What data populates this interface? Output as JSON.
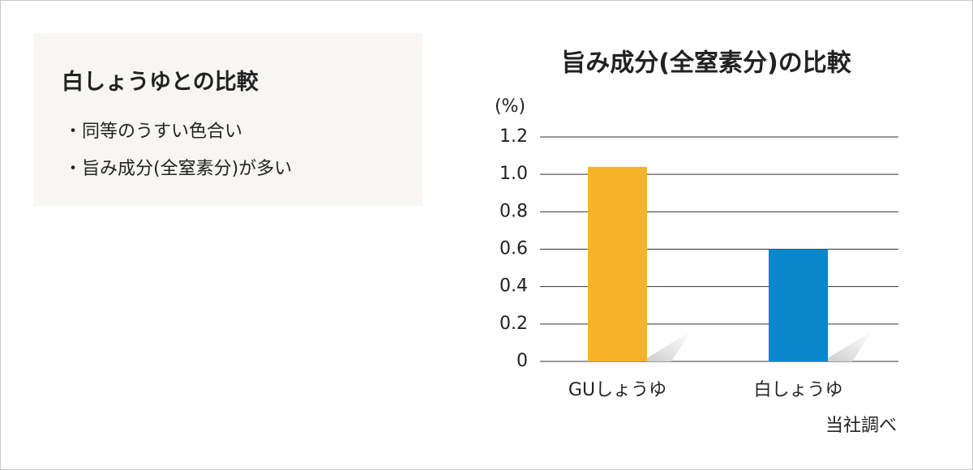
{
  "info": {
    "title": "白しょうゆとの比較",
    "bullets": [
      "・同等のうすい色合い",
      "・旨み成分(全窒素分)が多い"
    ]
  },
  "chart_data": {
    "type": "bar",
    "title": "旨み成分(全窒素分)の比較",
    "y_label": "(%)",
    "categories": [
      "GUしょうゆ",
      "白しょうゆ"
    ],
    "values": [
      1.04,
      0.6
    ],
    "colors": [
      "#f6b22a",
      "#0a87cc"
    ],
    "ylim": [
      0,
      1.2
    ],
    "yticks": [
      0,
      0.2,
      0.4,
      0.6,
      0.8,
      {
        "value": 1,
        "label": "1.0"
      },
      1.2
    ],
    "grid": true,
    "note": "当社調べ"
  }
}
